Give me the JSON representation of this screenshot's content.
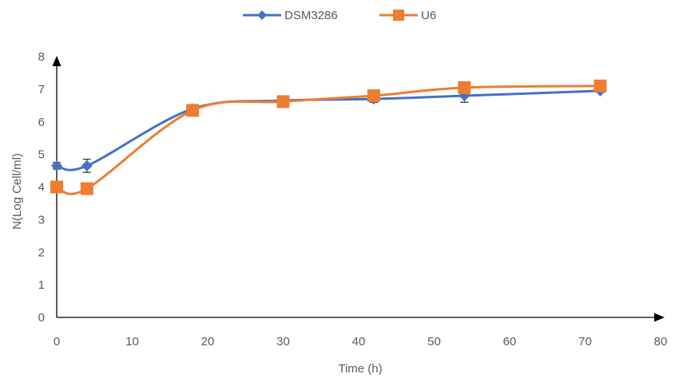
{
  "chart_data": {
    "type": "line",
    "xlabel": "Time (h)",
    "ylabel": "N(Log Cell/ml)",
    "xlim": [
      0,
      80
    ],
    "ylim": [
      0,
      8
    ],
    "xticks": [
      "0",
      "10",
      "20",
      "30",
      "40",
      "50",
      "60",
      "70",
      "80"
    ],
    "yticks": [
      "0",
      "1",
      "2",
      "3",
      "4",
      "5",
      "6",
      "7",
      "8"
    ],
    "grid": false,
    "legend": "top-center",
    "series": [
      {
        "name": "DSM3286",
        "color": "#4472C4",
        "marker": "diamond",
        "x": [
          0,
          4,
          18,
          30,
          42,
          54,
          72
        ],
        "y": [
          4.65,
          4.65,
          6.4,
          6.65,
          6.7,
          6.8,
          6.95
        ],
        "error": [
          0.1,
          0.2,
          0.1,
          0.1,
          0.1,
          0.2,
          0.05
        ]
      },
      {
        "name": "U6",
        "color": "#ED7D31",
        "marker": "square",
        "x": [
          0,
          4,
          18,
          30,
          42,
          54,
          72
        ],
        "y": [
          4.0,
          3.95,
          6.35,
          6.62,
          6.8,
          7.05,
          7.1
        ],
        "error": [
          0.05,
          0.08,
          0.05,
          0.05,
          0.1,
          0.05,
          0.05
        ]
      }
    ]
  }
}
